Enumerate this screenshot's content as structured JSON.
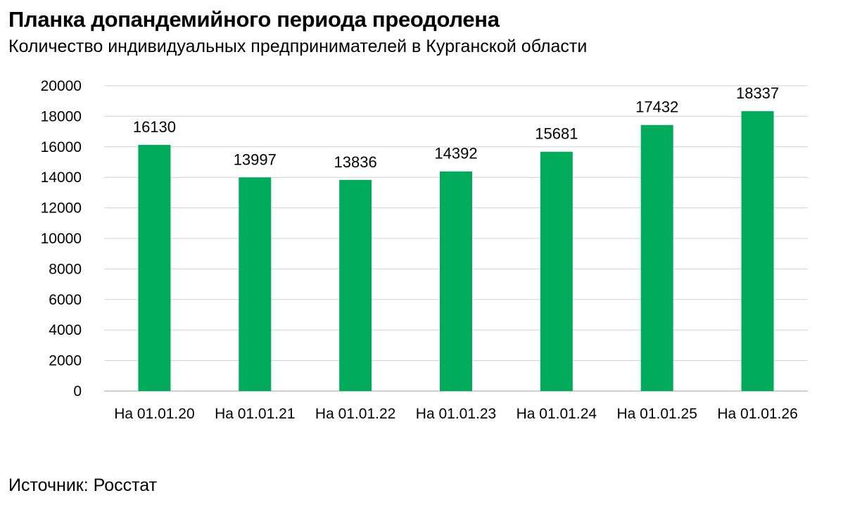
{
  "header": {
    "title": "Планка допандемийного периода преодолена",
    "subtitle": "Количество индивидуальных предпринимателей в Курганской области"
  },
  "footer": {
    "source": "Источник: Росстат"
  },
  "colors": {
    "bar": "#00ac5c",
    "grid": "#d0d0d0",
    "axis": "#bfbfbf"
  },
  "chart_data": {
    "type": "bar",
    "categories": [
      "На 01.01.20",
      "На 01.01.21",
      "На 01.01.22",
      "На 01.01.23",
      "На 01.01.24",
      "На 01.01.25",
      "На 01.01.26"
    ],
    "values": [
      16130,
      13997,
      13836,
      14392,
      15681,
      17432,
      18337
    ],
    "ylim": [
      0,
      20000
    ],
    "yticks": [
      0,
      2000,
      4000,
      6000,
      8000,
      10000,
      12000,
      14000,
      16000,
      18000,
      20000
    ],
    "grid": true,
    "data_labels": true
  }
}
